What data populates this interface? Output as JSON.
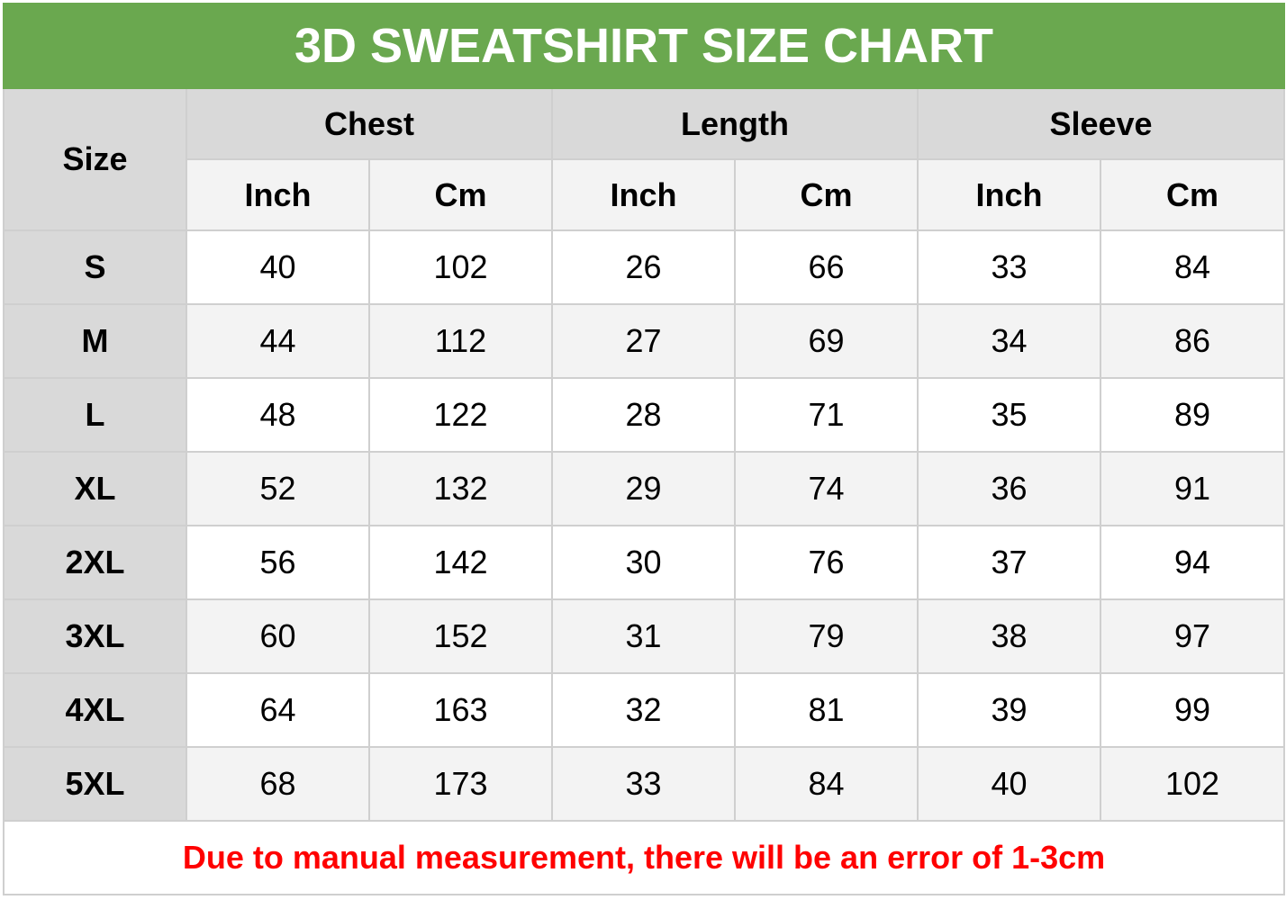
{
  "title": "3D SWEATSHIRT SIZE CHART",
  "headers": {
    "size": "Size",
    "groups": [
      "Chest",
      "Length",
      "Sleeve"
    ],
    "units": [
      "Inch",
      "Cm",
      "Inch",
      "Cm",
      "Inch",
      "Cm"
    ]
  },
  "rows": [
    {
      "size": "S",
      "values": [
        "40",
        "102",
        "26",
        "66",
        "33",
        "84"
      ]
    },
    {
      "size": "M",
      "values": [
        "44",
        "112",
        "27",
        "69",
        "34",
        "86"
      ]
    },
    {
      "size": "L",
      "values": [
        "48",
        "122",
        "28",
        "71",
        "35",
        "89"
      ]
    },
    {
      "size": "XL",
      "values": [
        "52",
        "132",
        "29",
        "74",
        "36",
        "91"
      ]
    },
    {
      "size": "2XL",
      "values": [
        "56",
        "142",
        "30",
        "76",
        "37",
        "94"
      ]
    },
    {
      "size": "3XL",
      "values": [
        "60",
        "152",
        "31",
        "79",
        "38",
        "97"
      ]
    },
    {
      "size": "4XL",
      "values": [
        "64",
        "163",
        "32",
        "81",
        "39",
        "99"
      ]
    },
    {
      "size": "5XL",
      "values": [
        "68",
        "173",
        "33",
        "84",
        "40",
        "102"
      ]
    }
  ],
  "note": "Due to manual measurement, there will be an error of 1-3cm",
  "colors": {
    "title_bg": "#6aa84f",
    "note_text": "#ff0000",
    "header_bg": "#d9d9d9",
    "alt_row_bg": "#f3f3f3"
  }
}
